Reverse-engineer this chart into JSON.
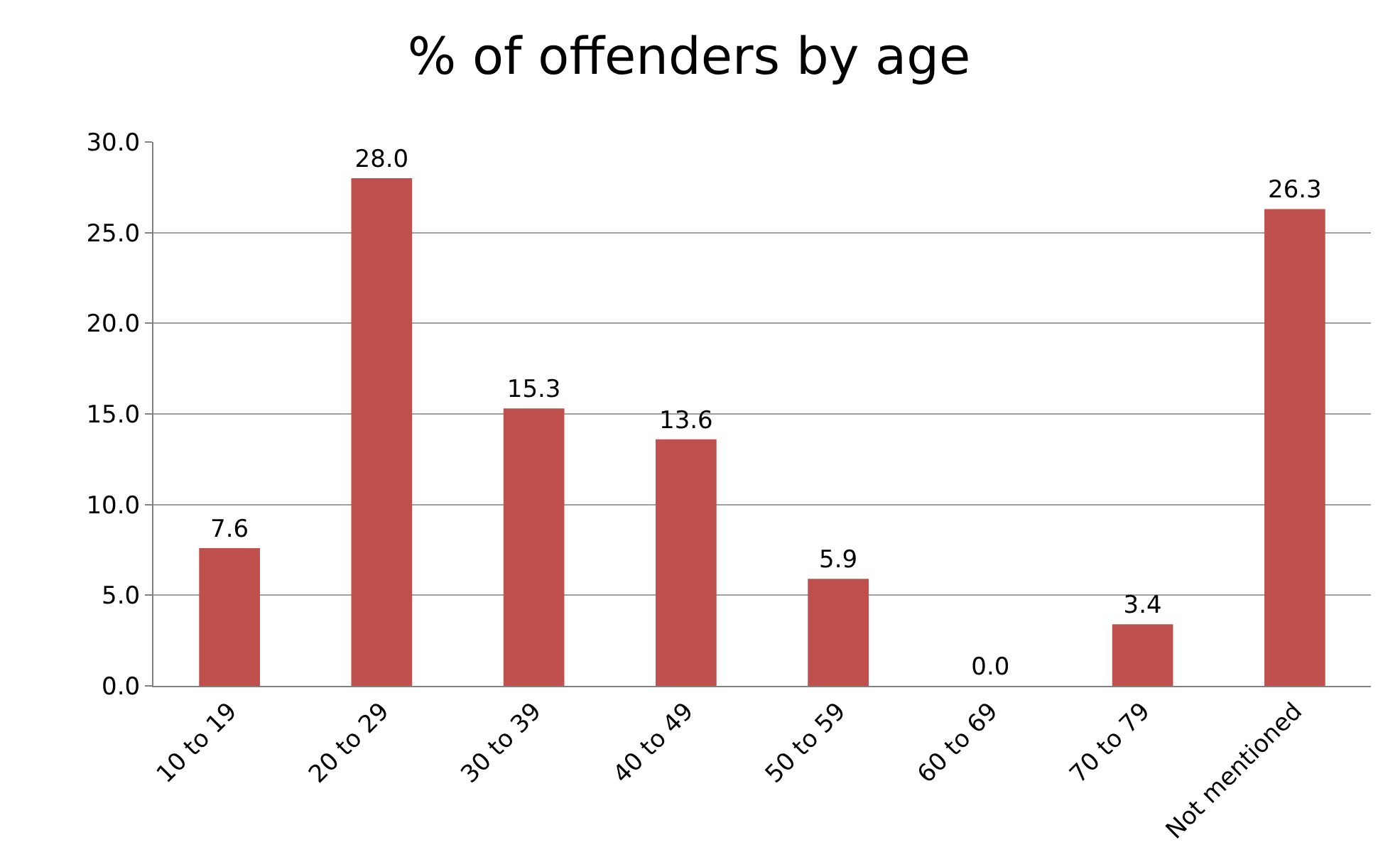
{
  "chart_data": {
    "type": "bar",
    "title": "% of offenders by age",
    "categories": [
      "10 to 19",
      "20 to 29",
      "30 to 39",
      "40 to 49",
      "50 to 59",
      "60 to 69",
      "70 to 79",
      "Not mentioned"
    ],
    "values": [
      7.6,
      28.0,
      15.3,
      13.6,
      5.9,
      0.0,
      3.4,
      26.3
    ],
    "value_labels": [
      "7.6",
      "28.0",
      "15.3",
      "13.6",
      "5.9",
      "0.0",
      "3.4",
      "26.3"
    ],
    "color": "#c0504d",
    "ylim": [
      0,
      30
    ],
    "yticks": [
      {
        "value": 0,
        "label": "0.0"
      },
      {
        "value": 5,
        "label": "5.0"
      },
      {
        "value": 10,
        "label": "10.0"
      },
      {
        "value": 15,
        "label": "15.0"
      },
      {
        "value": 20,
        "label": "20.0"
      },
      {
        "value": 25,
        "label": "25.0"
      },
      {
        "value": 30,
        "label": "30.0"
      }
    ],
    "grid": "y",
    "legend": false
  }
}
